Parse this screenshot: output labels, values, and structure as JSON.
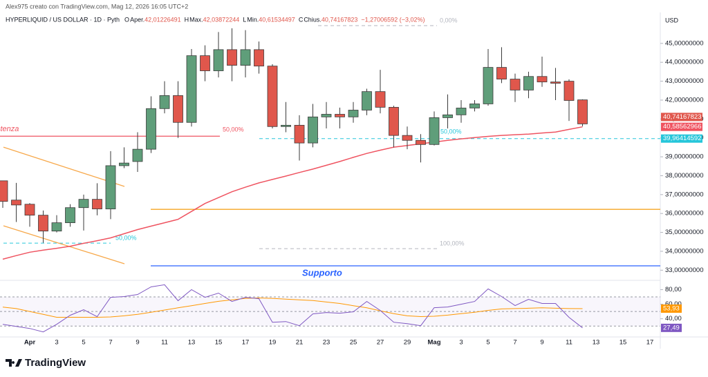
{
  "header": {
    "author": "Alex975 creato con TradingView.com, Mag 12, 2026 16:05 UTC+2",
    "symbol": "HYPERLIQUID / US DOLLAR · 1D · Pyth",
    "ohlc": [
      {
        "key": "O",
        "label": "Aper.",
        "value": "42,01226491"
      },
      {
        "key": "H",
        "label": "Max.",
        "value": "42,03872244"
      },
      {
        "key": "L",
        "label": "Min.",
        "value": "40,61534497"
      },
      {
        "key": "C",
        "label": "Chius.",
        "value": "40,74167823"
      }
    ],
    "change": "−1,27006592 (−3,02%)"
  },
  "chart_data": [
    {
      "type": "candlestick",
      "currency": "USD",
      "categories": [
        null,
        null,
        "Apr",
        null,
        "3",
        null,
        "5",
        null,
        "7",
        null,
        "9",
        null,
        "11",
        null,
        "13",
        null,
        "15",
        null,
        "17",
        null,
        "19",
        null,
        "21",
        null,
        "23",
        null,
        "25",
        null,
        "27",
        null,
        "29",
        null,
        "Mag",
        null,
        "3",
        null,
        "5",
        null,
        "7",
        null,
        "9",
        null,
        "11",
        null,
        "13",
        null,
        "15",
        null,
        "17"
      ],
      "series": [
        {
          "up_color": "#5f9e7a",
          "down_color": "#e0574c",
          "open": [
            37.73,
            36.71,
            36.49,
            35.91,
            35.07,
            35.51,
            36.31,
            36.75,
            36.24,
            38.53,
            38.75,
            39.4,
            41.55,
            42.24,
            40.82,
            44.35,
            43.55,
            44.67,
            43.84,
            44.67,
            43.8,
            40.6,
            40.67,
            39.73,
            41.11,
            41.25,
            41.11,
            41.47,
            42.45,
            41.62,
            40.13,
            39.87,
            39.65,
            41.07,
            41.22,
            41.58,
            41.8,
            43.73,
            43.11,
            42.53,
            43.25,
            42.96,
            43.0,
            42.01226491,
            null,
            null,
            null,
            null,
            null
          ],
          "high": [
            37.73,
            37.62,
            36.55,
            36.16,
            35.91,
            36.49,
            37.0,
            37.6,
            39.3,
            39.5,
            40.3,
            42.2,
            43.0,
            43.0,
            44.7,
            44.9,
            45.6,
            45.8,
            45.7,
            45.1,
            43.9,
            41.9,
            41.2,
            41.8,
            41.9,
            41.6,
            41.9,
            42.6,
            43.6,
            41.7,
            40.6,
            40.2,
            41.4,
            42.3,
            42.0,
            42.0,
            44.7,
            44.8,
            43.4,
            43.5,
            44.3,
            43.7,
            43.1,
            42.03872244,
            null,
            null,
            null,
            null,
            null
          ],
          "low": [
            36.3,
            35.55,
            35.3,
            34.45,
            35.0,
            35.3,
            35.1,
            35.9,
            35.7,
            38.4,
            38.2,
            39.2,
            41.3,
            40.0,
            40.6,
            43.0,
            43.2,
            43.0,
            43.2,
            43.4,
            40.5,
            40.3,
            38.8,
            39.5,
            40.5,
            40.5,
            40.8,
            41.2,
            41.3,
            39.5,
            39.4,
            38.7,
            39.6,
            40.5,
            40.8,
            41.4,
            41.7,
            42.9,
            41.9,
            42.1,
            42.7,
            42.0,
            40.9,
            40.61534497,
            null,
            null,
            null,
            null,
            null
          ],
          "close": [
            36.64,
            36.45,
            35.91,
            35.07,
            35.51,
            36.31,
            36.75,
            36.24,
            38.53,
            38.67,
            39.4,
            41.55,
            42.24,
            40.82,
            44.35,
            43.55,
            44.67,
            43.84,
            44.67,
            43.8,
            40.6,
            40.67,
            39.73,
            41.11,
            41.25,
            41.11,
            41.47,
            42.45,
            41.62,
            40.13,
            39.87,
            39.65,
            41.07,
            41.22,
            41.58,
            41.8,
            43.73,
            43.11,
            42.53,
            43.25,
            42.96,
            42.89,
            41.98,
            40.74167823,
            null,
            null,
            null,
            null,
            null
          ],
          "last_label": "40,74167823"
        },
        {
          "color": "#ef5360",
          "values": [
            33.58,
            33.77,
            33.95,
            34.06,
            34.16,
            34.27,
            34.42,
            34.56,
            34.71,
            34.93,
            35.15,
            35.33,
            35.51,
            35.69,
            36.11,
            36.53,
            36.84,
            37.15,
            37.39,
            37.62,
            37.8,
            37.98,
            38.17,
            38.35,
            38.55,
            38.75,
            38.97,
            39.18,
            39.35,
            39.51,
            39.6,
            39.69,
            39.78,
            39.87,
            39.95,
            40.02,
            40.08,
            40.13,
            40.17,
            40.2,
            40.26,
            40.31,
            40.45,
            40.58562966,
            null,
            null,
            null,
            null,
            null
          ],
          "last_label": "40,58562966"
        }
      ],
      "ylim": [
        32.5,
        46.2
      ],
      "yticks": [
        {
          "value": 33,
          "label": "33,00000000"
        },
        {
          "value": 34,
          "label": "34,00000000"
        },
        {
          "value": 35,
          "label": "35,00000000"
        },
        {
          "value": 36,
          "label": "36,00000000"
        },
        {
          "value": 37,
          "label": "37,00000000"
        },
        {
          "value": 38,
          "label": "38,00000000"
        },
        {
          "value": 39,
          "label": "39,00000000"
        },
        {
          "value": 40,
          "label": "40,00000000"
        },
        {
          "value": 41,
          "label": "41,00000000"
        },
        {
          "value": 42,
          "label": "42,00000000"
        },
        {
          "value": 43,
          "label": "43,00000000"
        },
        {
          "value": 44,
          "label": "44,00000000"
        },
        {
          "value": 45,
          "label": "45,00000000"
        }
      ],
      "levels": [
        {
          "value": 40.09,
          "color": "#ef5360",
          "dash": false
        },
        {
          "value": 39.96414592,
          "color": "#26c6da",
          "dash": true,
          "label": "39,96414592"
        },
        {
          "value": 45.94,
          "color": "#b2b5be",
          "dash": true
        },
        {
          "value": 34.43,
          "color": "#26c6da",
          "dash": true
        },
        {
          "value": 36.22,
          "color": "#f5a623",
          "dash": false
        },
        {
          "value": 33.23,
          "color": "#2962ff",
          "dash": false
        },
        {
          "value": 34.14,
          "color": "#b2b5be",
          "dash": true
        }
      ],
      "trendlines": [
        {
          "color": "#f7a84a",
          "start": 39.51,
          "end": 37.43
        },
        {
          "color": "#f7a84a",
          "start": 35.35,
          "end": 33.34
        }
      ],
      "annotations": [
        {
          "text": "Resistenza",
          "color": "#ef5360"
        },
        {
          "text": "50,00%",
          "color": "#ef5360"
        },
        {
          "text": "50,00%",
          "color": "#26c6da"
        },
        {
          "text": "50,00%",
          "color": "#26c6da"
        },
        {
          "text": "0,00%",
          "color": "#b2b5be"
        },
        {
          "text": "100,00%",
          "color": "#b2b5be"
        },
        {
          "text": "Supporto",
          "color": "#2962ff"
        }
      ]
    },
    {
      "type": "line",
      "series": [
        {
          "color": "#7e57c2",
          "values": [
            32.4,
            29.5,
            26.7,
            21.9,
            32.4,
            44.8,
            52.4,
            42.9,
            69.5,
            70.5,
            73.3,
            83.8,
            86.7,
            64.8,
            80,
            69.5,
            75.2,
            63.8,
            69.5,
            67.6,
            35.2,
            36.2,
            30.5,
            46.7,
            48.6,
            47.6,
            49.5,
            63.8,
            51.4,
            35.2,
            33.3,
            30.5,
            55.2,
            56.2,
            60,
            63.8,
            81,
            70.5,
            58.1,
            66.7,
            61,
            61,
            41.9,
            27.49,
            null,
            null,
            null,
            null,
            null
          ],
          "last_label": "27,49"
        },
        {
          "color": "#ff9800",
          "values": [
            56,
            54,
            50,
            46,
            42,
            42,
            42,
            42,
            42.5,
            44,
            46,
            49,
            52,
            55,
            58,
            61,
            64,
            66,
            68,
            68.6,
            68,
            67,
            66,
            65,
            63,
            61,
            58,
            55,
            51,
            47,
            44,
            43,
            43.5,
            45,
            47,
            49,
            51.5,
            53.5,
            54,
            54.5,
            55,
            54.5,
            54,
            53.93,
            null,
            null,
            null,
            null,
            null
          ],
          "last_label": "53,93"
        }
      ],
      "ylim": [
        15,
        89
      ],
      "yticks": [
        {
          "value": 40,
          "label": "40,00"
        },
        {
          "value": 60,
          "label": "60,00"
        },
        {
          "value": 80,
          "label": "80,00"
        }
      ],
      "levels": [
        70,
        50,
        30
      ]
    }
  ],
  "footer": {
    "logo": "TradingView"
  }
}
